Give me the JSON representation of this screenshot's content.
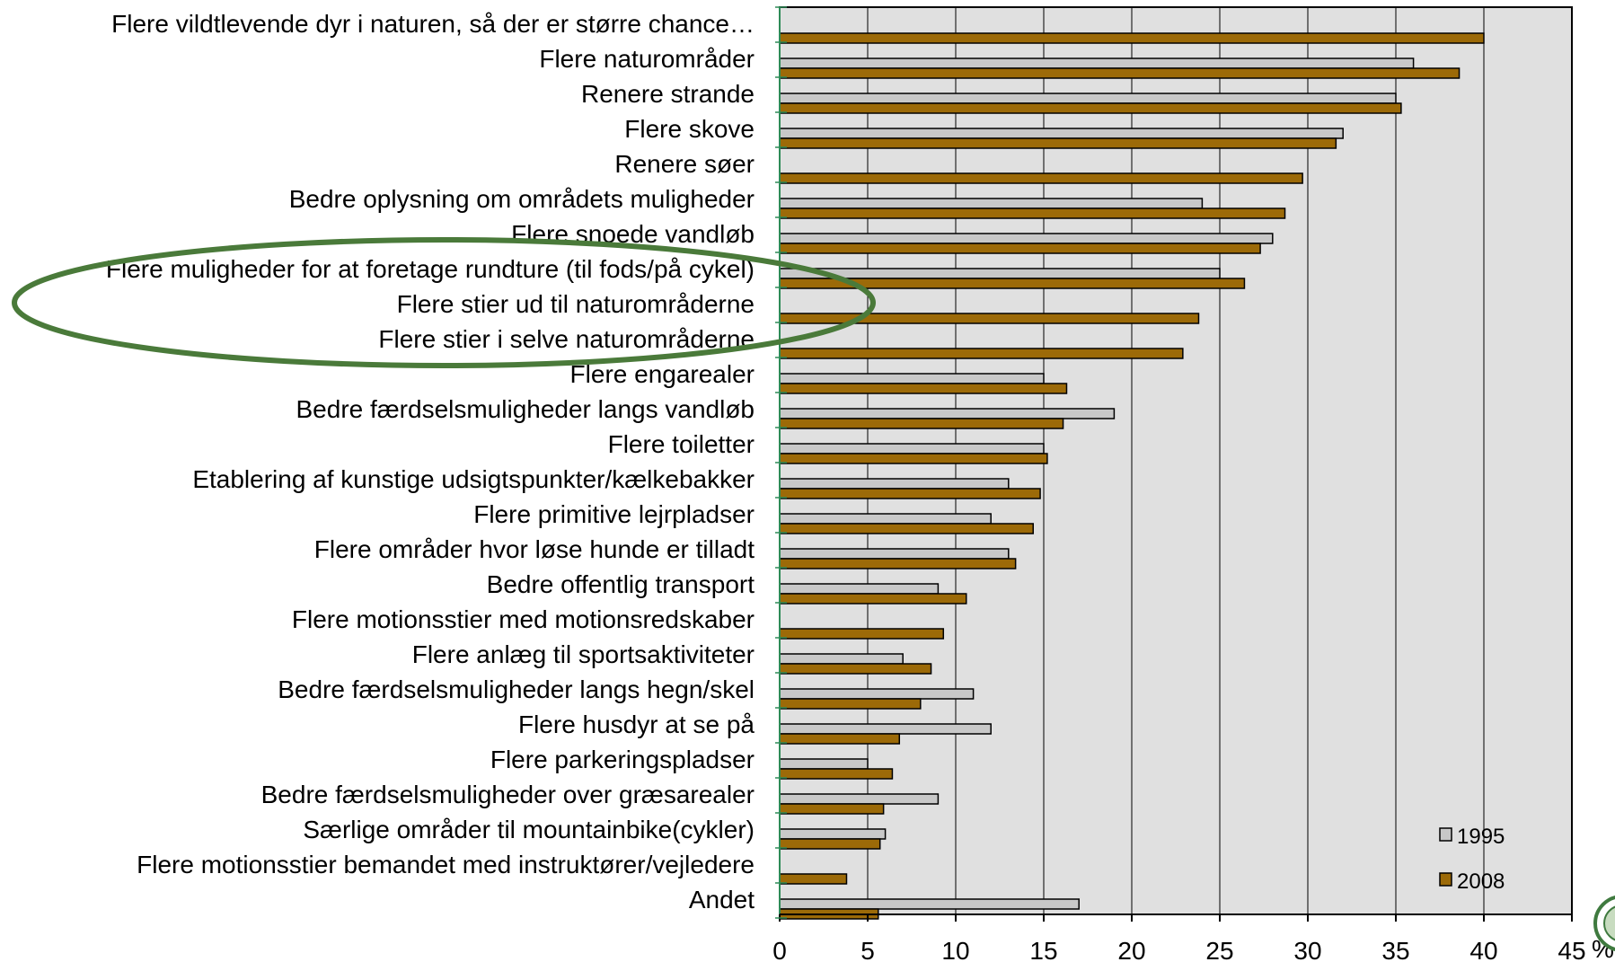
{
  "chart_data": {
    "type": "bar",
    "orientation": "horizontal",
    "categories": [
      "Flere vildtlevende dyr i naturen, så der er større chance…",
      "Flere naturområder",
      "Renere strande",
      "Flere skove",
      "Renere søer",
      "Bedre oplysning om områdets muligheder",
      "Flere snoede vandløb",
      "Flere muligheder for at foretage rundture (til fods/på cykel)",
      "Flere stier ud til naturområderne",
      "Flere stier i selve naturområderne",
      "Flere engarealer",
      "Bedre færdselsmuligheder langs vandløb",
      "Flere toiletter",
      "Etablering af kunstige udsigtspunkter/kælkebakker",
      "Flere primitive lejrpladser",
      "Flere områder hvor løse hunde er tilladt",
      "Bedre offentlig transport",
      "Flere motionsstier med motionsredskaber",
      "Flere anlæg til sportsaktiviteter",
      "Bedre færdselsmuligheder langs hegn/skel",
      "Flere husdyr at se på",
      "Flere parkeringspladser",
      "Bedre færdselsmuligheder over græsarealer",
      "Særlige områder til mountainbike(cykler)",
      "Flere motionsstier bemandet med instruktører/vejledere",
      "Andet"
    ],
    "series": [
      {
        "name": "1995",
        "color": "#c8c8c8",
        "values": [
          null,
          36,
          35,
          32,
          null,
          24,
          28,
          25,
          null,
          null,
          15,
          19,
          15,
          13,
          12,
          13,
          9,
          null,
          7,
          11,
          12,
          5,
          9,
          6,
          null,
          17
        ]
      },
      {
        "name": "2008",
        "color": "#9c6a08",
        "values": [
          40,
          38.6,
          35.3,
          31.6,
          29.7,
          28.7,
          27.3,
          26.4,
          23.8,
          22.9,
          16.3,
          16.1,
          15.2,
          14.8,
          14.4,
          13.4,
          10.6,
          9.3,
          8.6,
          8.0,
          6.8,
          6.4,
          5.9,
          5.7,
          3.8,
          5.6
        ]
      }
    ],
    "xlim": [
      0,
      45
    ],
    "xticks": [
      0,
      5,
      10,
      15,
      20,
      25,
      30,
      35,
      40,
      45
    ],
    "x_unit": "%",
    "grid": "vertical",
    "legend": "bottom-right",
    "highlight": {
      "shape": "ellipse",
      "color": "#4a7a3a",
      "categories": [
        "Flere muligheder for at foretage rundture (til fods/på cykel)",
        "Flere stier ud til naturområderne",
        "Flere stier i selve naturområderne"
      ]
    }
  }
}
